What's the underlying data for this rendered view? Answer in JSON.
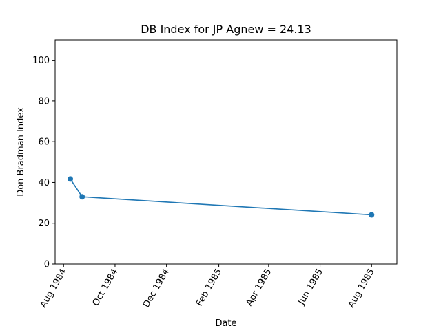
{
  "chart_data": {
    "type": "line",
    "title": "DB Index for JP Agnew = 24.13",
    "xlabel": "Date",
    "ylabel": "Don Bradman Index",
    "x_ticks": [
      "Aug 1984",
      "Oct 1984",
      "Dec 1984",
      "Feb 1985",
      "Apr 1985",
      "Jun 1985",
      "Aug 1985"
    ],
    "x_tick_dates": [
      "1984-08-01",
      "1984-10-01",
      "1984-12-01",
      "1985-02-01",
      "1985-04-01",
      "1985-06-01",
      "1985-08-01"
    ],
    "y_ticks": [
      0,
      20,
      40,
      60,
      80,
      100
    ],
    "ylim": [
      0,
      110
    ],
    "xlim": [
      "1984-07-22",
      "1985-08-31"
    ],
    "grid": false,
    "series": [
      {
        "x": [
          "1984-08-09",
          "1984-08-23",
          "1985-08-01"
        ],
        "values": [
          41.7,
          33.0,
          24.13
        ],
        "color": "#1f77b4"
      }
    ]
  }
}
